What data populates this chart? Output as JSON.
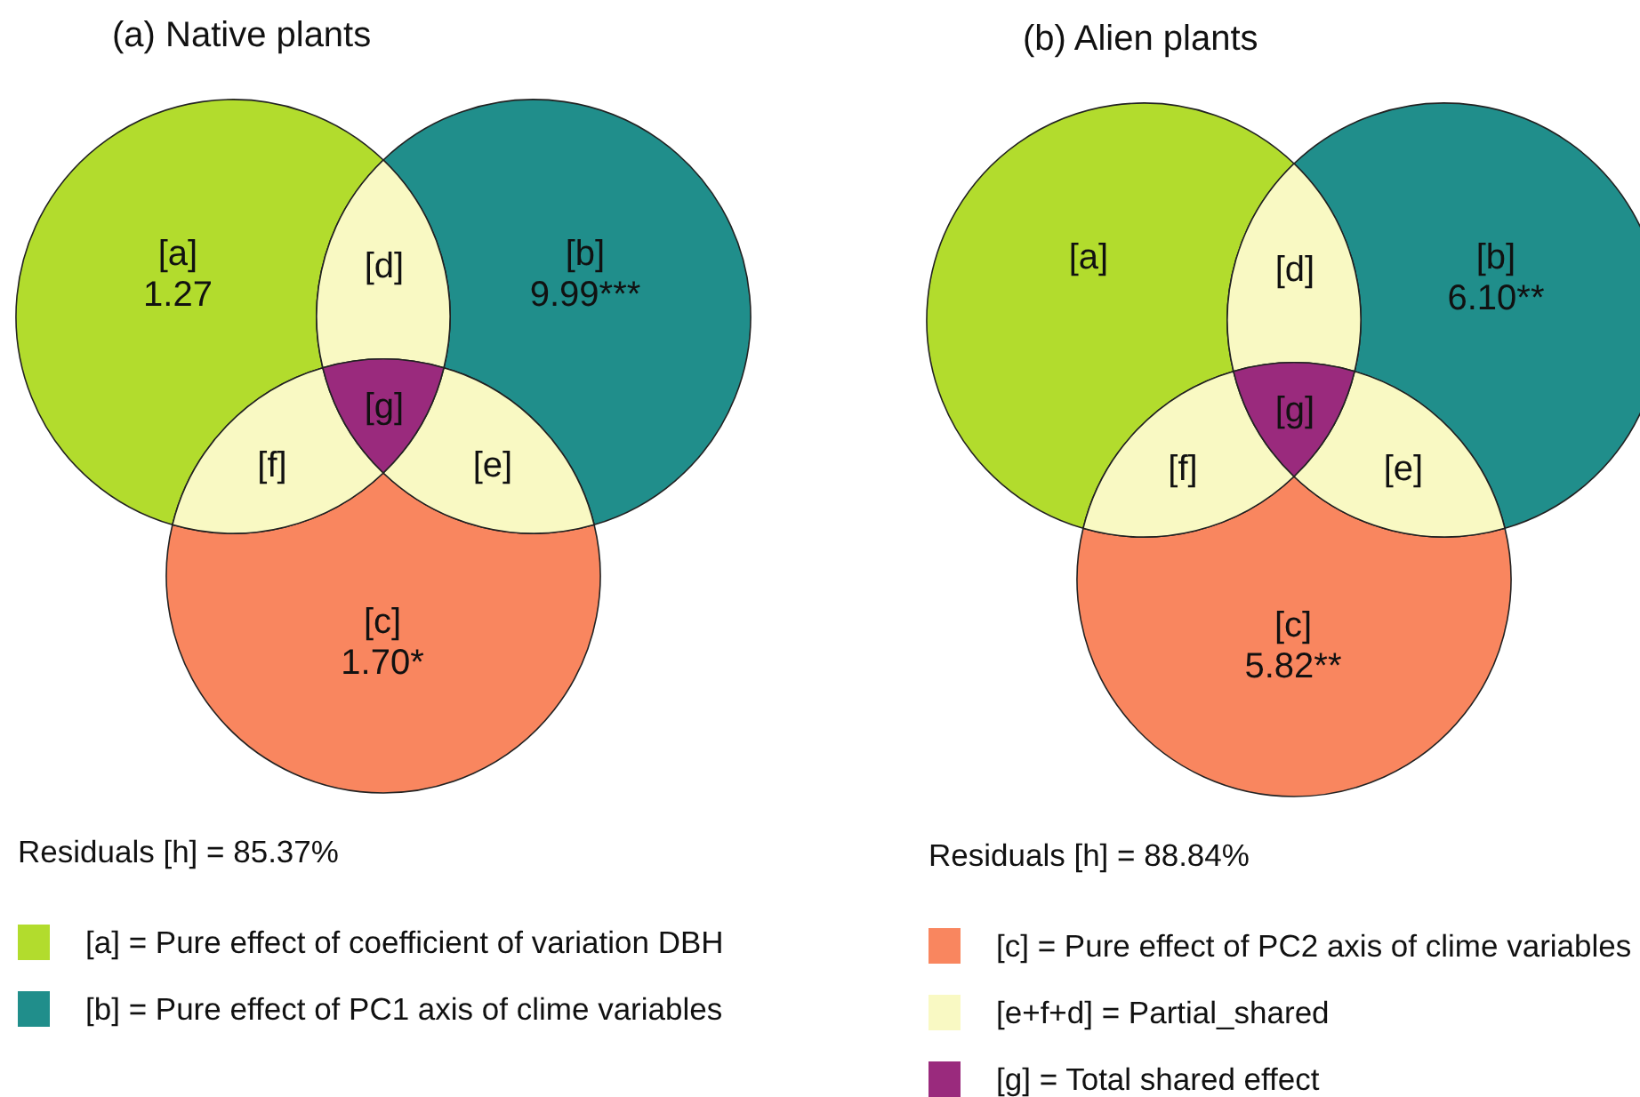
{
  "chart_data": [
    {
      "type": "other",
      "title": "(a) Native plants",
      "categories": [
        "[a]",
        "[b]",
        "[c]",
        "[d]",
        "[e]",
        "[f]",
        "[g]"
      ],
      "values": [
        1.27,
        9.99,
        1.7,
        null,
        null,
        null,
        null
      ],
      "value_labels": [
        "1.27",
        "9.99***",
        "1.70*",
        null,
        null,
        null,
        null
      ],
      "colors": [
        "#b2dc2d",
        "#208e8b",
        "#f9865f",
        "#f9f9c3",
        "#f9f9c3",
        "#f9f9c3",
        "#9a2a7d"
      ],
      "legend": "bottom",
      "series": [
        {
          "name": "[a] = Pure effect of coefficient of variation DBH",
          "color": "#b2dc2d",
          "values": [
            null,
            null,
            null,
            null,
            null,
            null,
            null
          ]
        },
        {
          "name": "[b] = Pure effect of PC1 axis of clime variables",
          "color": "#208e8b",
          "values": [
            null,
            null,
            null,
            null,
            null,
            null,
            null
          ]
        }
      ],
      "annotations": [
        "Residuals [h] = 85.37%"
      ]
    },
    {
      "type": "other",
      "title": "(b) Alien plants",
      "categories": [
        "[a]",
        "[b]",
        "[c]",
        "[d]",
        "[e]",
        "[f]",
        "[g]"
      ],
      "values": [
        null,
        6.1,
        5.82,
        null,
        null,
        null,
        null
      ],
      "value_labels": [
        null,
        "6.10**",
        "5.82**",
        null,
        null,
        null,
        null
      ],
      "colors": [
        "#b2dc2d",
        "#208e8b",
        "#f9865f",
        "#f9f9c3",
        "#f9f9c3",
        "#f9f9c3",
        "#9a2a7d"
      ],
      "legend": "bottom",
      "series": [
        {
          "name": "[c] = Pure effect of PC2 axis of clime variables",
          "color": "#f9865f",
          "values": [
            null,
            null,
            null,
            null,
            null,
            null,
            null
          ]
        },
        {
          "name": "[e+f+d] = Partial_shared",
          "color": "#f9f9c3",
          "values": [
            null,
            null,
            null,
            null,
            null,
            null,
            null
          ]
        },
        {
          "name": "[g] = Total shared effect",
          "color": "#9a2a7d",
          "values": [
            null,
            null,
            null,
            null,
            null,
            null,
            null
          ]
        }
      ],
      "annotations": [
        "Residuals [h] = 88.84%"
      ]
    }
  ]
}
